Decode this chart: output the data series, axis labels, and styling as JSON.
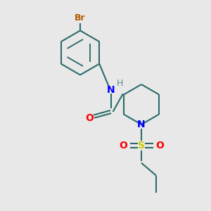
{
  "bg_color": "#e8e8e8",
  "bond_color": "#2d6b6b",
  "bond_width": 1.5,
  "N_color": "#0000ff",
  "O_color": "#ff0000",
  "S_color": "#cccc00",
  "Br_color": "#b35a00",
  "H_color": "#5b8a8a",
  "figsize": [
    3.0,
    3.0
  ],
  "dpi": 100,
  "xlim": [
    0,
    10
  ],
  "ylim": [
    0,
    10
  ]
}
